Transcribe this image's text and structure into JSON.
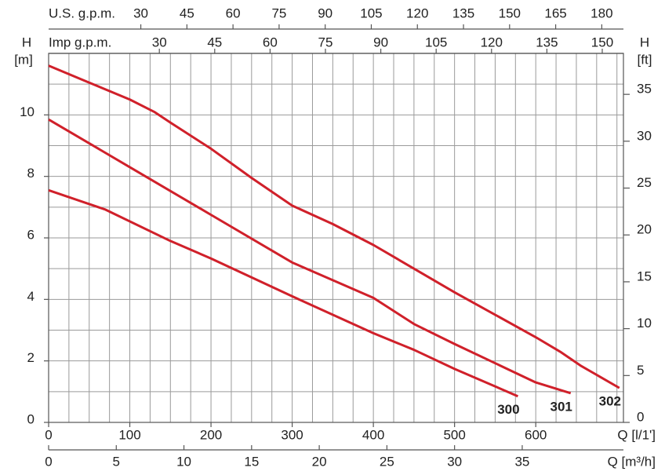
{
  "chart_data": {
    "type": "line",
    "xlabel": "Q [l/1']",
    "xlim": [
      0,
      708
    ],
    "xticks": [
      0,
      100,
      200,
      300,
      400,
      500,
      600
    ],
    "xgrid": [
      25,
      50,
      75,
      100,
      125,
      150,
      175,
      200,
      225,
      250,
      275,
      300,
      325,
      350,
      375,
      400,
      425,
      450,
      475,
      500,
      525,
      550,
      575,
      600,
      625,
      650,
      675,
      700
    ],
    "ylabel": "H",
    "yunit": "[m]",
    "ylim": [
      0,
      12
    ],
    "yticks": [
      0,
      2,
      4,
      6,
      8,
      10
    ],
    "ygrid": [
      1,
      2,
      3,
      4,
      5,
      6,
      7,
      8,
      9,
      10,
      11
    ],
    "y2label": "H",
    "y2unit": "[ft]",
    "y2lim": [
      0,
      39.37
    ],
    "y2ticks": [
      0,
      5,
      10,
      15,
      20,
      25,
      30,
      35
    ],
    "x_m3h": {
      "label": "Q [m³/h]",
      "lim": [
        0,
        42.48
      ],
      "ticks": [
        0,
        5,
        10,
        15,
        20,
        25,
        30,
        35
      ]
    },
    "x_us_gpm": {
      "label": "U.S. g.p.m.",
      "lim": [
        0,
        187.05
      ],
      "ticks": [
        30,
        45,
        60,
        75,
        90,
        105,
        120,
        135,
        150,
        165,
        180
      ]
    },
    "x_imp_gpm": {
      "label": "Imp g.p.m.",
      "lim": [
        0,
        155.74
      ],
      "ticks": [
        30,
        45,
        60,
        75,
        90,
        105,
        120,
        135,
        150
      ]
    },
    "series": [
      {
        "name": "300",
        "color": "#d0202a",
        "x": [
          0,
          70,
          150,
          200,
          300,
          400,
          450,
          500,
          578
        ],
        "values": [
          7.55,
          6.92,
          5.9,
          5.33,
          4.1,
          2.9,
          2.36,
          1.74,
          0.85
        ]
      },
      {
        "name": "301",
        "color": "#d0202a",
        "x": [
          0,
          100,
          200,
          300,
          400,
          450,
          500,
          600,
          643
        ],
        "values": [
          9.85,
          8.3,
          6.75,
          5.2,
          4.05,
          3.2,
          2.55,
          1.3,
          0.95
        ]
      },
      {
        "name": "302",
        "color": "#d0202a",
        "x": [
          0,
          50,
          100,
          130,
          150,
          200,
          250,
          300,
          350,
          400,
          450,
          500,
          550,
          600,
          630,
          655,
          703
        ],
        "values": [
          11.6,
          11.05,
          10.5,
          10.1,
          9.75,
          8.9,
          7.95,
          7.05,
          6.45,
          5.77,
          5.0,
          4.23,
          3.5,
          2.77,
          2.3,
          1.85,
          1.12
        ]
      }
    ]
  }
}
